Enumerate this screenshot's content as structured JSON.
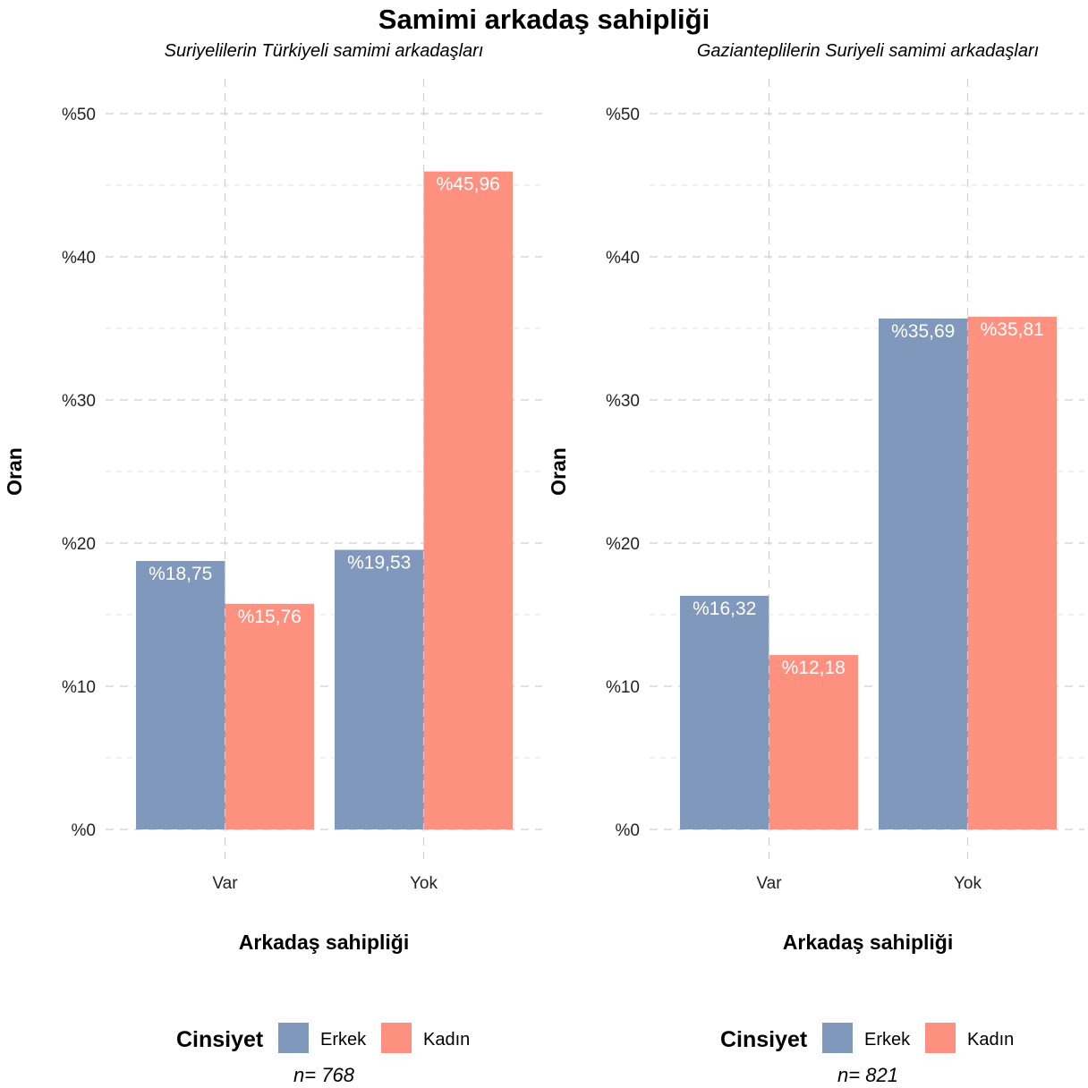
{
  "title": "Samimi arkadaş sahipliği",
  "colors": {
    "Erkek": "#7f98bb",
    "Kadın": "#fe9080"
  },
  "chart_data": [
    {
      "type": "bar",
      "subtitle": "Suriyelilerin Türkiyeli samimi arkadaşları",
      "xlabel": "Arkadaş sahipliği",
      "ylabel": "Oran",
      "categories": [
        "Var",
        "Yok"
      ],
      "series": [
        {
          "name": "Erkek",
          "values": [
            18.75,
            19.53
          ],
          "labels": [
            "%18,75",
            "%19,53"
          ]
        },
        {
          "name": "Kadın",
          "values": [
            15.76,
            45.96
          ],
          "labels": [
            "%15,76",
            "%45,96"
          ]
        }
      ],
      "ylim": [
        0,
        52
      ],
      "yticks": [
        0,
        10,
        20,
        30,
        40,
        50
      ],
      "ytick_labels": [
        "%0",
        "%10",
        "%20",
        "%30",
        "%40",
        "%50"
      ],
      "legend_title": "Cinsiyet",
      "legend_position": "bottom",
      "note": "n=  768",
      "grid": true
    },
    {
      "type": "bar",
      "subtitle": "Gazianteplilerin Suriyeli samimi arkadaşları",
      "xlabel": "Arkadaş sahipliği",
      "ylabel": "Oran",
      "categories": [
        "Var",
        "Yok"
      ],
      "series": [
        {
          "name": "Erkek",
          "values": [
            16.32,
            35.69
          ],
          "labels": [
            "%16,32",
            "%35,69"
          ]
        },
        {
          "name": "Kadın",
          "values": [
            12.18,
            35.81
          ],
          "labels": [
            "%12,18",
            "%35,81"
          ]
        }
      ],
      "ylim": [
        0,
        52
      ],
      "yticks": [
        0,
        10,
        20,
        30,
        40,
        50
      ],
      "ytick_labels": [
        "%0",
        "%10",
        "%20",
        "%30",
        "%40",
        "%50"
      ],
      "legend_title": "Cinsiyet",
      "legend_position": "bottom",
      "note": "n=  821",
      "grid": true
    }
  ]
}
